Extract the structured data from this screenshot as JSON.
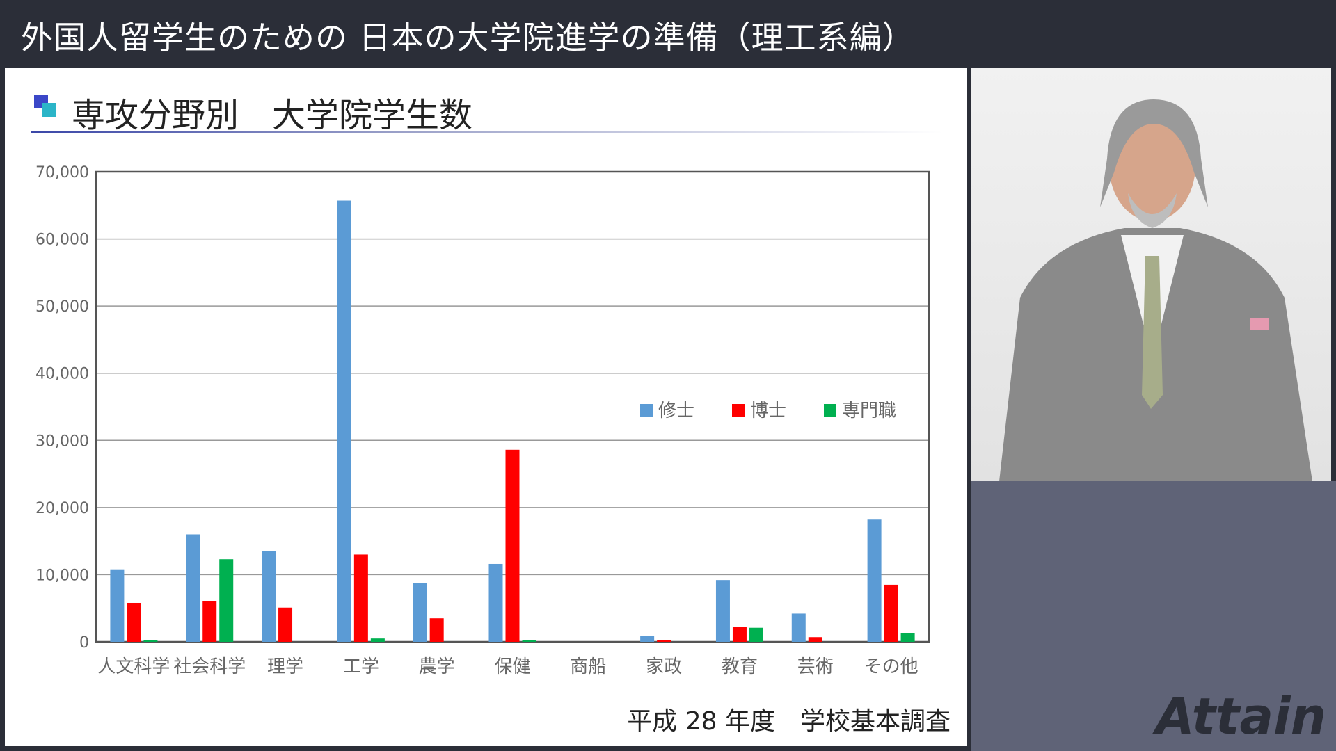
{
  "header": {
    "title": "外国人留学生のための 日本の大学院進学の準備（理工系編）"
  },
  "slide": {
    "heading": "専攻分野別　大学院学生数",
    "source": "平成 28 年度　学校基本調査"
  },
  "logo": "Attain",
  "chart_data": {
    "type": "bar",
    "title": "",
    "xlabel": "",
    "ylabel": "",
    "ylim": [
      0,
      70000
    ],
    "yticks": [
      "0",
      "10,000",
      "20,000",
      "30,000",
      "40,000",
      "50,000",
      "60,000",
      "70,000"
    ],
    "grid": true,
    "legend": "center-right",
    "categories": [
      "人文科学",
      "社会科学",
      "理学",
      "工学",
      "農学",
      "保健",
      "商船",
      "家政",
      "教育",
      "芸術",
      "その他"
    ],
    "series": [
      {
        "name": "修士",
        "color": "#5b9bd5",
        "values": [
          10800,
          16000,
          13500,
          65700,
          8700,
          11600,
          0,
          900,
          9200,
          4200,
          18200
        ]
      },
      {
        "name": "博士",
        "color": "#ff0000",
        "values": [
          5800,
          6100,
          5100,
          13000,
          3500,
          28600,
          0,
          300,
          2200,
          700,
          8500
        ]
      },
      {
        "name": "専門職",
        "color": "#00b050",
        "values": [
          300,
          12300,
          0,
          500,
          0,
          300,
          0,
          0,
          2100,
          0,
          1300
        ]
      }
    ]
  }
}
